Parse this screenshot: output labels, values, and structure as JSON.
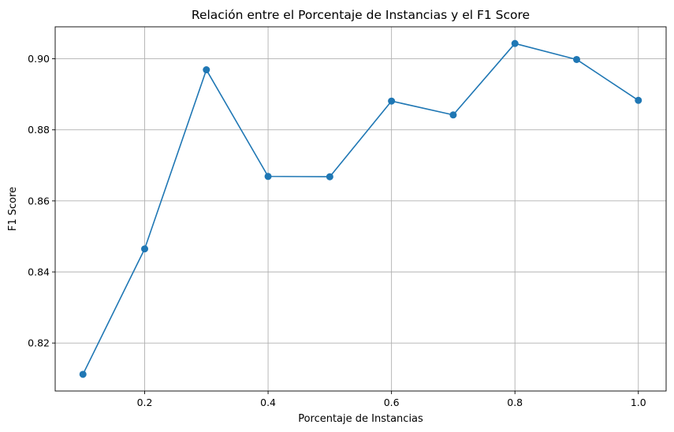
{
  "chart_data": {
    "type": "line",
    "title": "Relación entre el Porcentaje de Instancias y el F1 Score",
    "xlabel": "Porcentaje de Instancias",
    "ylabel": "F1 Score",
    "xlim": [
      0.055,
      1.045
    ],
    "ylim": [
      0.8065,
      0.909
    ],
    "xticks": [
      0.2,
      0.4,
      0.6,
      0.8,
      1.0
    ],
    "xtick_labels": [
      "0.2",
      "0.4",
      "0.6",
      "0.8",
      "1.0"
    ],
    "yticks": [
      0.82,
      0.84,
      0.86,
      0.88,
      0.9
    ],
    "ytick_labels": [
      "0.82",
      "0.84",
      "0.86",
      "0.88",
      "0.90"
    ],
    "grid": true,
    "marker": "circle",
    "series": [
      {
        "color": "#1f77b4",
        "x": [
          0.1,
          0.2,
          0.3,
          0.4,
          0.5,
          0.6,
          0.7,
          0.8,
          0.9,
          1.0
        ],
        "y": [
          0.8112,
          0.8465,
          0.8969,
          0.8669,
          0.8668,
          0.8881,
          0.8842,
          0.9043,
          0.8998,
          0.8883
        ]
      }
    ]
  }
}
